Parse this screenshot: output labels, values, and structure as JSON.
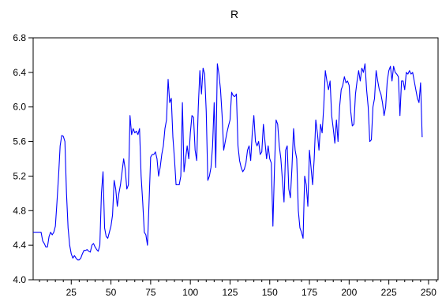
{
  "chart_data": {
    "type": "line",
    "title": "R",
    "xlabel": "",
    "ylabel": "",
    "xlim": [
      1,
      256
    ],
    "ylim": [
      4.0,
      6.8
    ],
    "x_ticks": [
      25,
      50,
      75,
      100,
      125,
      150,
      175,
      200,
      225,
      250
    ],
    "y_ticks": [
      4.0,
      4.4,
      4.8,
      5.2,
      5.6,
      6.0,
      6.4,
      6.8
    ],
    "y_tick_labels": [
      "4.0",
      "4.4",
      "4.8",
      "5.2",
      "5.6",
      "6.0",
      "6.4",
      "6.8"
    ],
    "grid": false,
    "legend": "none",
    "line_color": "#0000ff",
    "series": [
      {
        "values": [
          4.55,
          4.55,
          4.55,
          4.55,
          4.55,
          4.55,
          4.45,
          4.42,
          4.38,
          4.38,
          4.5,
          4.55,
          4.52,
          4.55,
          4.62,
          4.9,
          5.2,
          5.55,
          5.67,
          5.66,
          5.6,
          5.0,
          4.6,
          4.4,
          4.3,
          4.25,
          4.28,
          4.25,
          4.23,
          4.23,
          4.25,
          4.3,
          4.34,
          4.34,
          4.35,
          4.33,
          4.32,
          4.4,
          4.42,
          4.38,
          4.35,
          4.33,
          4.4,
          5.0,
          5.25,
          4.6,
          4.5,
          4.48,
          4.55,
          4.62,
          4.75,
          5.15,
          5.05,
          4.85,
          5.0,
          5.1,
          5.25,
          5.4,
          5.28,
          5.05,
          5.1,
          5.9,
          5.68,
          5.75,
          5.7,
          5.72,
          5.68,
          5.75,
          5.2,
          4.9,
          4.55,
          4.52,
          4.4,
          4.9,
          5.42,
          5.45,
          5.45,
          5.48,
          5.4,
          5.2,
          5.3,
          5.45,
          5.55,
          5.75,
          5.85,
          6.32,
          6.05,
          6.1,
          5.65,
          5.4,
          5.1,
          5.1,
          5.1,
          5.2,
          6.05,
          5.25,
          5.4,
          5.55,
          5.4,
          5.7,
          5.9,
          5.88,
          5.5,
          5.38,
          6.0,
          6.42,
          6.15,
          6.45,
          6.38,
          5.95,
          5.15,
          5.2,
          5.3,
          5.55,
          6.05,
          5.3,
          6.5,
          6.38,
          6.2,
          5.9,
          5.5,
          5.6,
          5.7,
          5.78,
          5.85,
          6.17,
          6.13,
          6.12,
          6.15,
          5.55,
          5.38,
          5.3,
          5.25,
          5.28,
          5.35,
          5.5,
          5.55,
          5.38,
          5.7,
          5.9,
          5.6,
          5.55,
          5.6,
          5.45,
          5.48,
          5.8,
          5.6,
          5.4,
          5.55,
          5.4,
          5.35,
          4.62,
          5.3,
          5.85,
          5.8,
          5.55,
          5.4,
          5.15,
          4.9,
          5.5,
          5.55,
          5.05,
          4.95,
          5.3,
          5.75,
          5.5,
          5.4,
          4.8,
          4.6,
          4.55,
          4.48,
          5.2,
          5.1,
          4.85,
          5.5,
          5.3,
          5.1,
          5.4,
          5.85,
          5.7,
          5.5,
          5.8,
          5.7,
          6.0,
          6.42,
          6.3,
          6.2,
          6.3,
          5.9,
          5.75,
          5.58,
          5.85,
          5.6,
          6.0,
          6.2,
          6.25,
          6.35,
          6.28,
          6.3,
          6.25,
          5.95,
          5.78,
          5.8,
          6.15,
          6.3,
          6.42,
          6.3,
          6.45,
          6.4,
          6.5,
          6.2,
          6.0,
          5.6,
          5.62,
          6.0,
          6.1,
          6.42,
          6.3,
          6.2,
          6.15,
          6.05,
          5.9,
          6.0,
          6.3,
          6.42,
          6.47,
          6.3,
          6.47,
          6.4,
          6.38,
          6.35,
          5.9,
          6.3,
          6.3,
          6.2,
          6.4,
          6.38,
          6.42,
          6.38,
          6.4,
          6.3,
          6.2,
          6.1,
          6.05,
          6.28,
          5.65
        ]
      }
    ]
  }
}
